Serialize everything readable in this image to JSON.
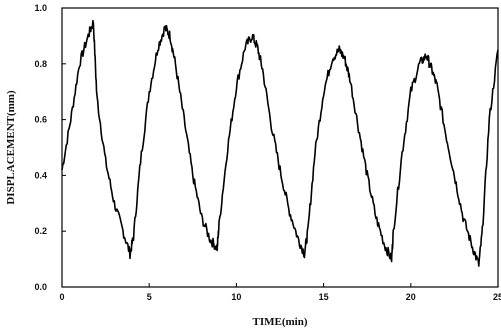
{
  "chart_data": {
    "type": "line",
    "title": "",
    "xlabel": "TIME(min)",
    "ylabel": "DISPLACEMENT(mm)",
    "xlim": [
      0,
      25
    ],
    "ylim": [
      0.0,
      1.0
    ],
    "grid": false,
    "legend": "none",
    "line_color": "#000000",
    "x_ticks": [
      0,
      5,
      10,
      15,
      20,
      25
    ],
    "x_tick_labels": [
      "0",
      "5",
      "10",
      "15",
      "20",
      "25"
    ],
    "y_ticks": [
      0.0,
      0.2,
      0.4,
      0.6,
      0.8,
      1.0
    ],
    "y_tick_labels": [
      "0.0",
      "0.2",
      "0.4",
      "0.6",
      "0.8",
      "1.0"
    ],
    "series": [
      {
        "x": [
          0.0,
          0.5,
          1.0,
          1.5,
          1.8,
          2.0,
          2.5,
          3.0,
          3.5,
          3.9,
          4.1,
          4.5,
          5.0,
          5.5,
          5.9,
          6.2,
          6.5,
          7.0,
          7.5,
          8.0,
          8.5,
          8.9,
          9.0,
          9.5,
          10.0,
          10.5,
          10.9,
          11.2,
          11.5,
          12.0,
          12.5,
          13.0,
          13.5,
          13.9,
          14.1,
          14.5,
          15.0,
          15.5,
          15.9,
          16.2,
          16.5,
          17.0,
          17.5,
          18.0,
          18.5,
          18.9,
          19.0,
          19.5,
          20.0,
          20.5,
          20.9,
          21.2,
          21.5,
          22.0,
          22.5,
          23.0,
          23.5,
          23.9,
          24.1,
          24.5,
          25.0
        ],
        "y": [
          0.42,
          0.6,
          0.8,
          0.9,
          0.95,
          0.68,
          0.45,
          0.3,
          0.2,
          0.12,
          0.18,
          0.45,
          0.7,
          0.86,
          0.93,
          0.9,
          0.8,
          0.6,
          0.4,
          0.25,
          0.17,
          0.14,
          0.22,
          0.5,
          0.72,
          0.86,
          0.9,
          0.86,
          0.78,
          0.58,
          0.42,
          0.28,
          0.18,
          0.12,
          0.2,
          0.48,
          0.7,
          0.82,
          0.85,
          0.82,
          0.75,
          0.57,
          0.4,
          0.25,
          0.15,
          0.1,
          0.2,
          0.48,
          0.7,
          0.8,
          0.83,
          0.78,
          0.72,
          0.55,
          0.4,
          0.25,
          0.15,
          0.08,
          0.2,
          0.6,
          0.85
        ]
      }
    ]
  }
}
